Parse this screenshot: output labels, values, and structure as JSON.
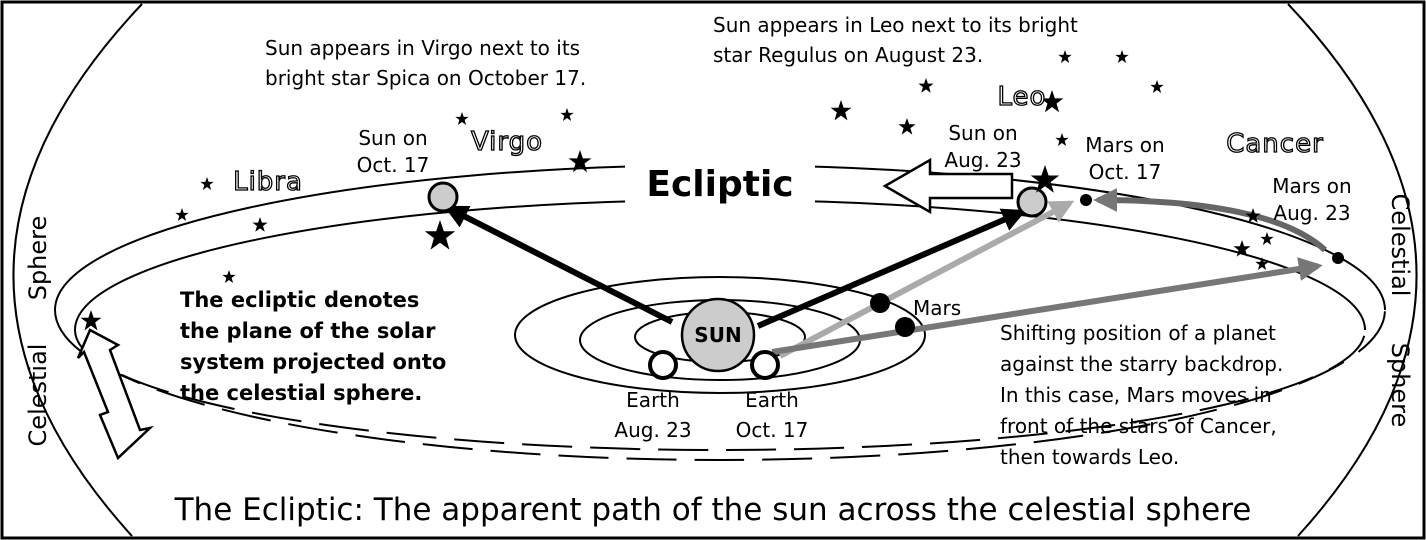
{
  "title": "The Ecliptic: The apparent path of the sun across the celestial sphere",
  "ecliptic_label": "Ecliptic",
  "constellations": {
    "libra": "Libra",
    "virgo": "Virgo",
    "leo": "Leo",
    "cancer": "Cancer"
  },
  "sphere_labels": {
    "left_upper": "Sphere",
    "left_lower": "Celestial",
    "right_upper": "Celestial",
    "right_lower": "Sphere"
  },
  "notes": {
    "virgo": [
      "Sun appears in Virgo next to its",
      "bright star Spica on October 17."
    ],
    "leo": [
      "Sun appears in Leo next to its bright",
      "star Regulus on August 23."
    ],
    "ecliptic": [
      "The ecliptic denotes",
      "the plane of the solar",
      "system projected onto",
      "the celestial sphere."
    ],
    "mars": [
      "Shifting position of a planet",
      "against the starry backdrop.",
      "In this case, Mars moves in",
      "front of the stars of Cancer,",
      "then towards Leo."
    ]
  },
  "bodies": {
    "sun": "SUN",
    "mars": "Mars",
    "sun_oct": [
      "Sun on",
      "Oct. 17"
    ],
    "sun_aug": [
      "Sun on",
      "Aug. 23"
    ],
    "mars_oct": [
      "Mars on",
      "Oct. 17"
    ],
    "mars_aug": [
      "Mars on",
      "Aug. 23"
    ],
    "earth_aug": [
      "Earth",
      "Aug. 23"
    ],
    "earth_oct": [
      "Earth",
      "Oct. 17"
    ]
  }
}
